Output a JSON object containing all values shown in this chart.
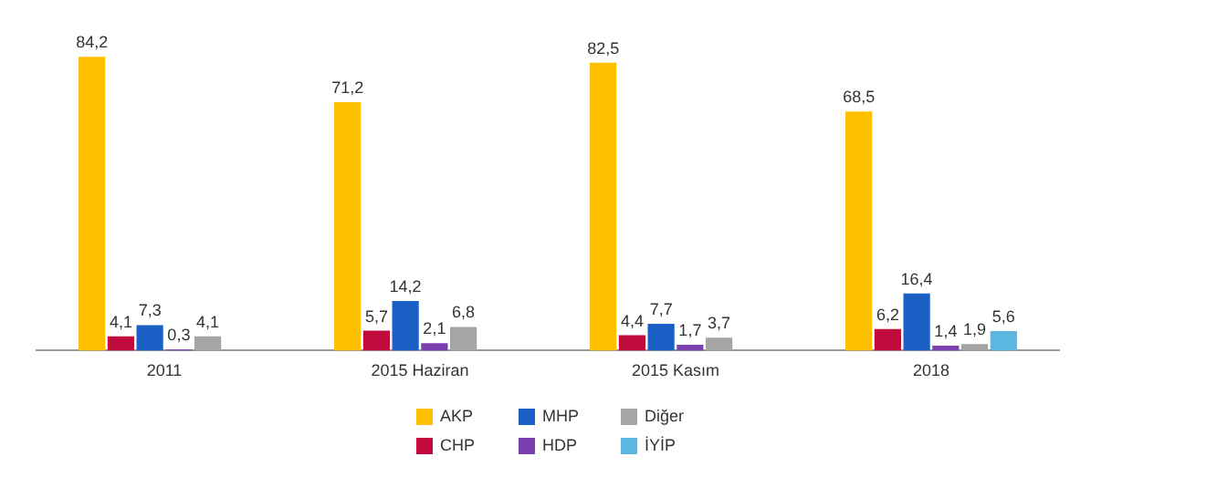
{
  "chart_data": {
    "type": "bar",
    "categories": [
      "2011",
      "2015 Haziran",
      "2015 Kasım",
      "2018"
    ],
    "series": [
      {
        "name": "AKP",
        "color": "#ffc000",
        "values": [
          84.2,
          71.2,
          82.5,
          68.5
        ],
        "value_labels": [
          "84,2",
          "71,2",
          "82,5",
          "68,5"
        ]
      },
      {
        "name": "CHP",
        "color": "#c00a3c",
        "values": [
          4.1,
          5.7,
          4.4,
          6.2
        ],
        "value_labels": [
          "4,1",
          "5,7",
          "4,4",
          "6,2"
        ]
      },
      {
        "name": "MHP",
        "color": "#1a5fc4",
        "values": [
          7.3,
          14.2,
          7.7,
          16.4
        ],
        "value_labels": [
          "7,3",
          "14,2",
          "7,7",
          "16,4"
        ]
      },
      {
        "name": "HDP",
        "color": "#7b3fb0",
        "values": [
          0.3,
          2.1,
          1.7,
          1.4
        ],
        "value_labels": [
          "0,3",
          "2,1",
          "1,7",
          "1,4"
        ]
      },
      {
        "name": "Diğer",
        "color": "#a5a5a5",
        "values": [
          4.1,
          6.8,
          3.7,
          1.9
        ],
        "value_labels": [
          "4,1",
          "6,8",
          "3,7",
          "1,9"
        ]
      },
      {
        "name": "İYİP",
        "color": "#5bb7e0",
        "values": [
          null,
          null,
          null,
          5.6
        ],
        "value_labels": [
          null,
          null,
          null,
          "5,6"
        ]
      }
    ],
    "grid": false,
    "legend": "bottom"
  }
}
